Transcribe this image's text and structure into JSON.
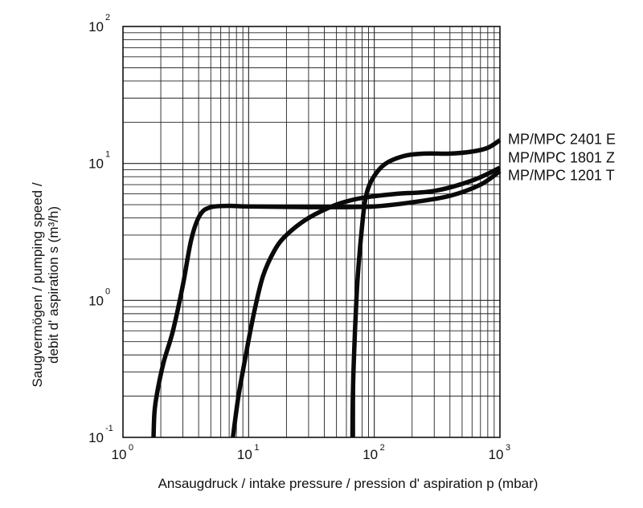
{
  "chart_data": {
    "type": "line",
    "title": "",
    "xlabel": "Ansaugdruck / intake pressure / pression d' aspiration p (mbar)",
    "ylabel_line1": "Saugvermögen / pumping speed /",
    "ylabel_line2": "debit d' aspiration s (m³/h)",
    "x_scale": "log",
    "y_scale": "log",
    "xlim": [
      1,
      1000
    ],
    "ylim": [
      0.1,
      100
    ],
    "grid": true,
    "x_ticks": [
      {
        "base": "10",
        "exp": "0",
        "value": 1
      },
      {
        "base": "10",
        "exp": "1",
        "value": 10
      },
      {
        "base": "10",
        "exp": "2",
        "value": 100
      },
      {
        "base": "10",
        "exp": "3",
        "value": 1000
      }
    ],
    "y_ticks": [
      {
        "base": "10",
        "exp": "-1",
        "value": 0.1
      },
      {
        "base": "10",
        "exp": "0",
        "value": 1
      },
      {
        "base": "10",
        "exp": "1",
        "value": 10
      },
      {
        "base": "10",
        "exp": "2",
        "value": 100
      }
    ],
    "series": [
      {
        "name": "MP/MPC 1201 T",
        "label_anchor_y": 8.2,
        "points": [
          [
            1.75,
            0.1
          ],
          [
            1.78,
            0.15
          ],
          [
            1.85,
            0.2
          ],
          [
            2.1,
            0.35
          ],
          [
            2.5,
            0.6
          ],
          [
            3.0,
            1.3
          ],
          [
            3.5,
            2.8
          ],
          [
            4.1,
            4.2
          ],
          [
            5.0,
            4.8
          ],
          [
            7,
            4.9
          ],
          [
            10,
            4.85
          ],
          [
            30,
            4.8
          ],
          [
            60,
            4.8
          ],
          [
            100,
            4.85
          ],
          [
            200,
            5.2
          ],
          [
            400,
            5.8
          ],
          [
            700,
            7.0
          ],
          [
            1000,
            8.8
          ]
        ]
      },
      {
        "name": "MP/MPC 1801 Z",
        "label_anchor_y": 11.0,
        "points": [
          [
            7.5,
            0.1
          ],
          [
            8.3,
            0.2
          ],
          [
            9.5,
            0.4
          ],
          [
            11,
            0.8
          ],
          [
            13,
            1.5
          ],
          [
            16,
            2.3
          ],
          [
            20,
            3.0
          ],
          [
            30,
            4.0
          ],
          [
            50,
            5.0
          ],
          [
            80,
            5.6
          ],
          [
            150,
            6.0
          ],
          [
            300,
            6.3
          ],
          [
            600,
            7.5
          ],
          [
            1000,
            9.3
          ]
        ]
      },
      {
        "name": "MP/MPC 2401 E",
        "label_anchor_y": 15.0,
        "points": [
          [
            67,
            0.1
          ],
          [
            67.5,
            0.2
          ],
          [
            69,
            0.4
          ],
          [
            72,
            1.0
          ],
          [
            75,
            1.8
          ],
          [
            80,
            3.5
          ],
          [
            85,
            5.5
          ],
          [
            95,
            7.5
          ],
          [
            120,
            9.8
          ],
          [
            170,
            11.3
          ],
          [
            250,
            11.8
          ],
          [
            400,
            11.8
          ],
          [
            600,
            12.2
          ],
          [
            800,
            13.0
          ],
          [
            1000,
            14.8
          ]
        ]
      }
    ]
  }
}
